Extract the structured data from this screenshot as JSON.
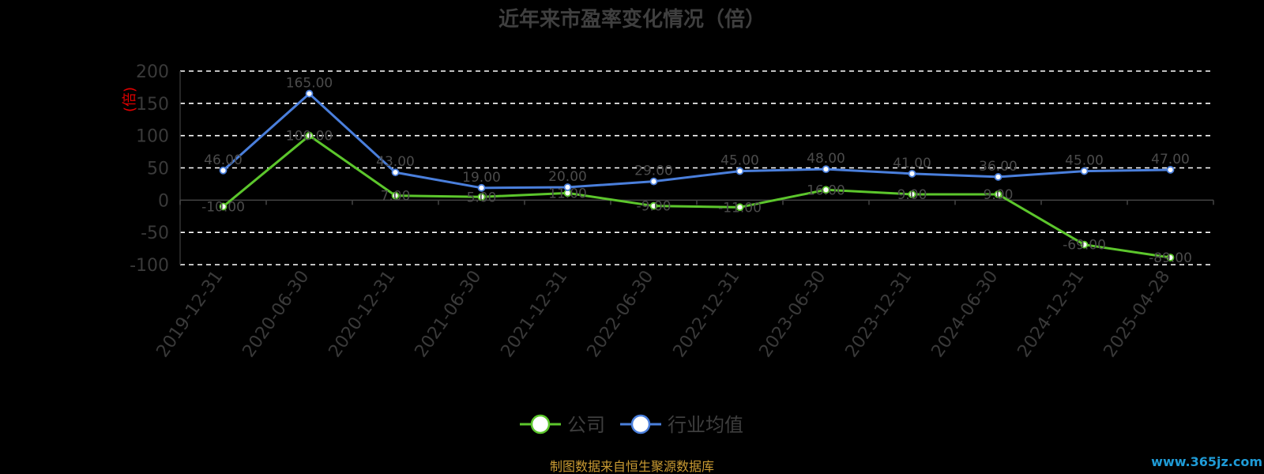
{
  "chart_data": {
    "type": "line",
    "title": "近年来市盈率变化情况（倍）",
    "ylabel": "(倍)",
    "xlabel": "",
    "categories": [
      "2019-12-31",
      "2020-06-30",
      "2020-12-31",
      "2021-06-30",
      "2021-12-31",
      "2022-06-30",
      "2022-12-31",
      "2023-06-30",
      "2023-12-31",
      "2024-06-30",
      "2024-12-31",
      "2025-04-28"
    ],
    "ylim": [
      -100,
      200
    ],
    "yticks": [
      "200",
      "150",
      "100",
      "50",
      "0",
      "-50",
      "-100"
    ],
    "grid": true,
    "legend": "bottom-center",
    "series": [
      {
        "name": "公司",
        "color": "#5cc62c",
        "values": [
          -10,
          100,
          7,
          5,
          11,
          -9,
          -11,
          16,
          9,
          9,
          -69,
          -89
        ],
        "labels": [
          "-10.00",
          "100.00",
          "7.00",
          "5.00",
          "11.00",
          "-9.00",
          "-11.00",
          "16.00",
          "9.00",
          "9.00",
          "-69.00",
          "-89.00"
        ]
      },
      {
        "name": "行业均值",
        "color": "#4a7fdc",
        "values": [
          46,
          165,
          43,
          19,
          20,
          29,
          45,
          48,
          41,
          36,
          45,
          47
        ],
        "labels": [
          "46.00",
          "165.00",
          "43.00",
          "19.00",
          "20.00",
          "29.00",
          "45.00",
          "48.00",
          "41.00",
          "36.00",
          "45.00",
          "47.00"
        ]
      }
    ]
  },
  "footer": {
    "source": "制图数据来自恒生聚源数据库",
    "watermark": "www.365jz.com"
  }
}
